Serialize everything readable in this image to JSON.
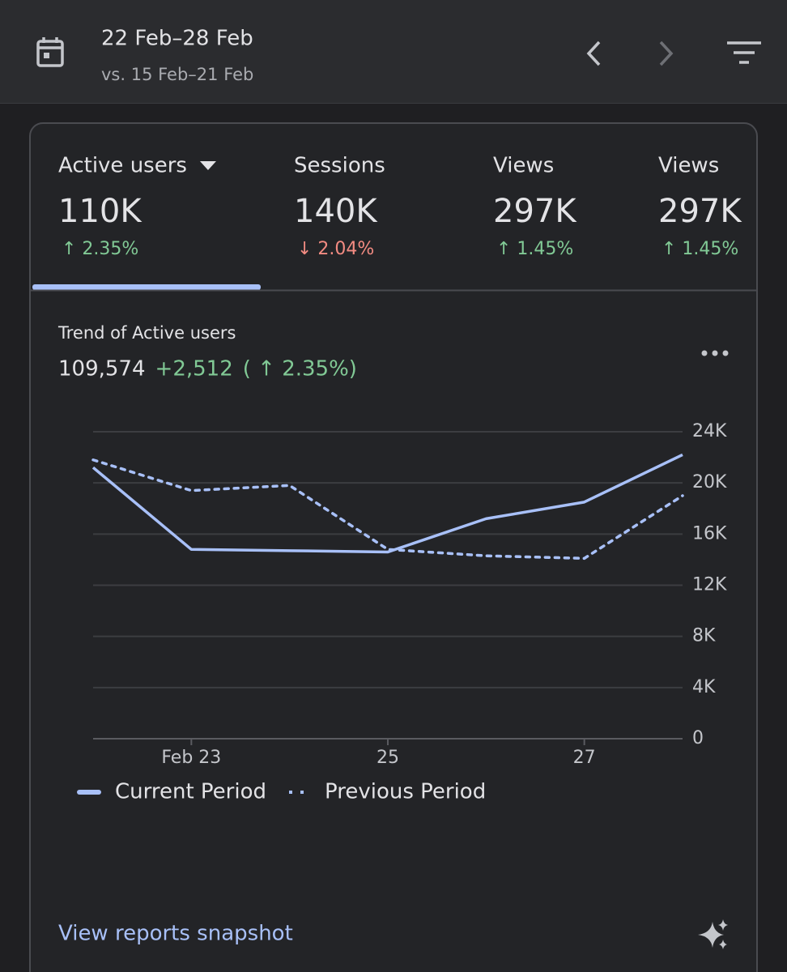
{
  "header": {
    "date_range": "22 Feb–28 Feb",
    "comparison": "vs. 15 Feb–21 Feb"
  },
  "metrics": [
    {
      "label": "Active users",
      "value": "110K",
      "change": "↑ 2.35%",
      "trend": "up",
      "selected": true
    },
    {
      "label": "Sessions",
      "value": "140K",
      "change": "↓ 2.04%",
      "trend": "down",
      "selected": false
    },
    {
      "label": "Views",
      "value": "297K",
      "change": "↑ 1.45%",
      "trend": "up",
      "selected": false
    },
    {
      "label": "Views",
      "value": "297K",
      "change": "↑ 1.45%",
      "trend": "up",
      "selected": false
    }
  ],
  "trend": {
    "title": "Trend of Active users",
    "total": "109,574",
    "change": "+2,512",
    "change_percent": "( ↑ 2.35%)"
  },
  "chart_data": {
    "type": "line",
    "categories": [
      null,
      "Feb 23",
      null,
      "25",
      null,
      "27",
      null
    ],
    "series": [
      {
        "name": "Current Period",
        "color": "#a8c0f8",
        "dashed": false,
        "values": [
          21200,
          14800,
          14700,
          14600,
          17200,
          18500,
          22200
        ]
      },
      {
        "name": "Previous Period",
        "color": "#a8c0f8",
        "dashed": true,
        "values": [
          21800,
          19400,
          19800,
          14800,
          14300,
          14100,
          19000
        ]
      }
    ],
    "ylim": [
      0,
      24000
    ],
    "yticks": [
      0,
      {
        "value": 4000,
        "label": "4K"
      },
      {
        "value": 8000,
        "label": "8K"
      },
      {
        "value": 12000,
        "label": "12K"
      },
      {
        "value": 16000,
        "label": "16K"
      },
      {
        "value": 20000,
        "label": "20K"
      },
      {
        "value": 24000,
        "label": "24K"
      }
    ],
    "grid": true
  },
  "footer": {
    "link": "View reports snapshot"
  }
}
